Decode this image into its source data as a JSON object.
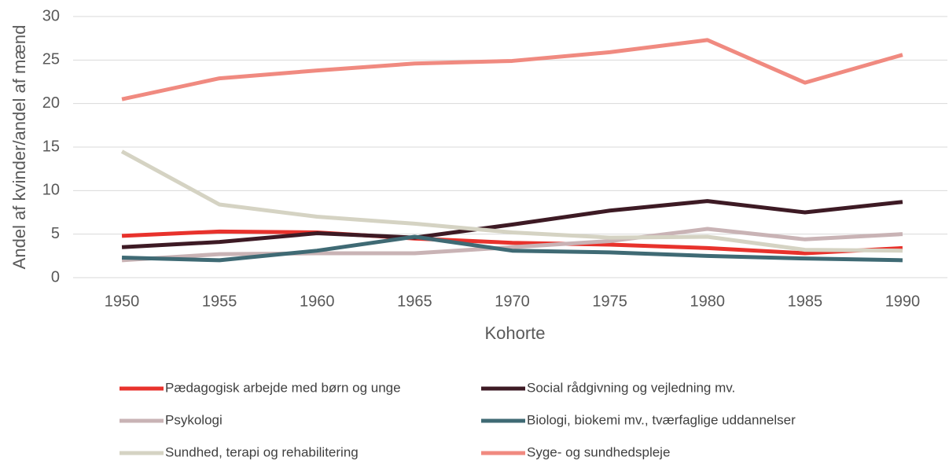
{
  "chart_data": {
    "type": "line",
    "x_label": "Kohorte",
    "y_label": "Andel af kvinder/andel af mænd",
    "categories": [
      "1950",
      "1955",
      "1960",
      "1965",
      "1970",
      "1975",
      "1980",
      "1985",
      "1990"
    ],
    "ylim": [
      0,
      30
    ],
    "yticks": [
      0,
      5,
      10,
      15,
      20,
      25,
      30
    ],
    "grid": true,
    "series": [
      {
        "name": "Pædagogisk arbejde med børn og unge",
        "color": "#e8322c",
        "values": [
          4.8,
          5.3,
          5.2,
          4.5,
          4.0,
          3.8,
          3.4,
          2.8,
          3.4
        ]
      },
      {
        "name": "Social rådgivning og vejledning mv.",
        "color": "#3d1a24",
        "values": [
          3.5,
          4.1,
          5.1,
          4.6,
          6.1,
          7.7,
          8.8,
          7.5,
          8.7
        ]
      },
      {
        "name": "Psykologi",
        "color": "#c9b3b5",
        "values": [
          2.0,
          2.7,
          2.8,
          2.8,
          3.5,
          4.2,
          5.6,
          4.4,
          5.0
        ]
      },
      {
        "name": "Biologi, biokemi mv., tværfaglige uddannelser",
        "color": "#3f6a74",
        "values": [
          2.3,
          2.0,
          3.1,
          4.7,
          3.1,
          2.9,
          2.5,
          2.2,
          2.0
        ]
      },
      {
        "name": "Sundhed, terapi og rehabilitering",
        "color": "#d5d3c3",
        "values": [
          14.5,
          8.4,
          7.0,
          6.2,
          5.2,
          4.6,
          4.7,
          3.2,
          3.1
        ]
      },
      {
        "name": "Syge- og sundhedspleje",
        "color": "#f08a80",
        "values": [
          20.5,
          22.9,
          23.8,
          24.6,
          24.9,
          25.9,
          27.3,
          22.4,
          25.6
        ]
      }
    ]
  }
}
